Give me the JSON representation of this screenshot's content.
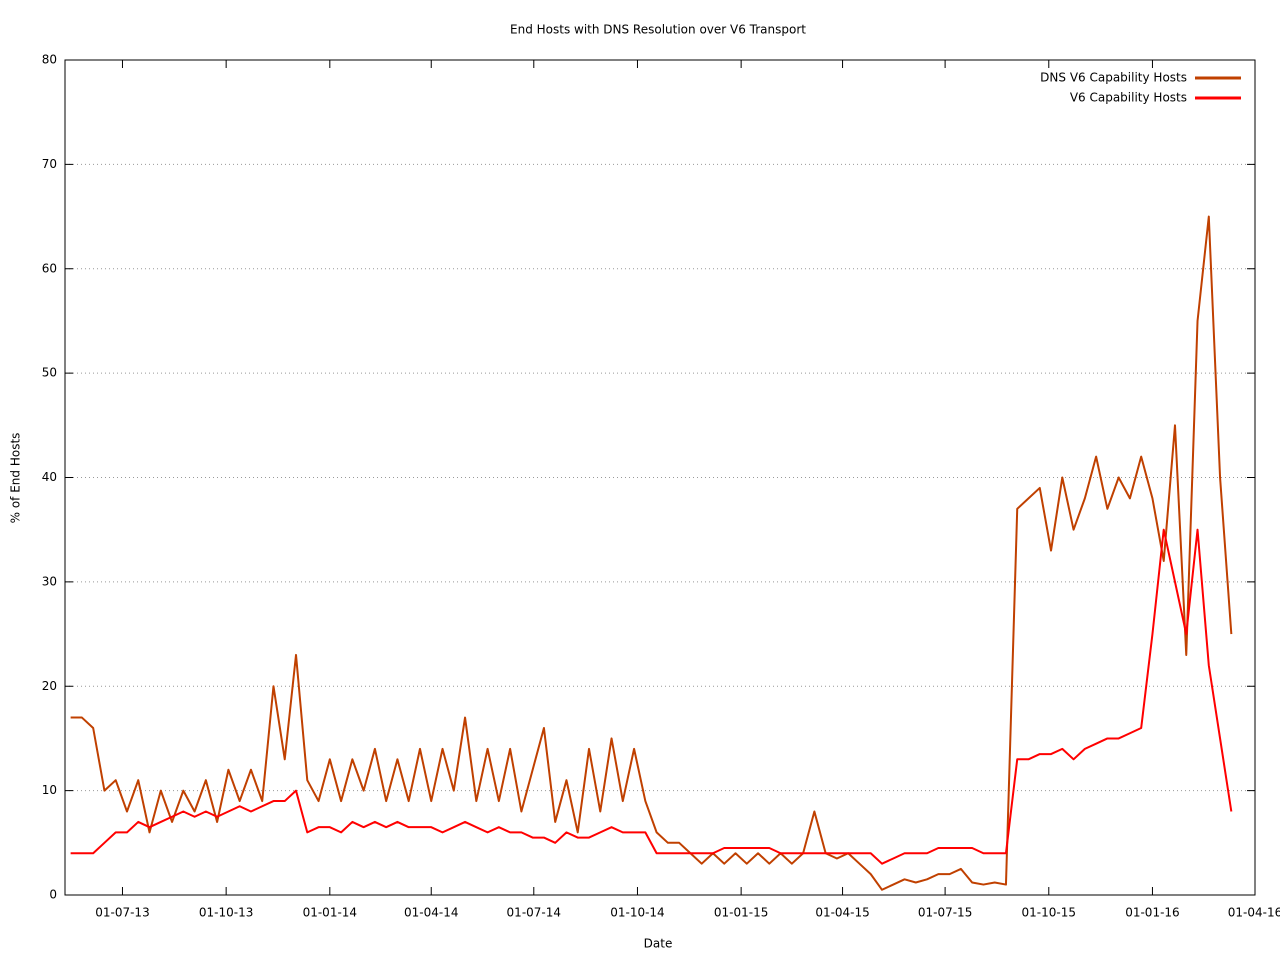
{
  "chart_data": {
    "type": "line",
    "title": "End Hosts with DNS Resolution over V6 Transport",
    "x_label": "Date",
    "y_label": "% of End Hosts",
    "x": [
      "2013-05-16",
      "2013-05-26",
      "2013-06-05",
      "2013-06-15",
      "2013-06-25",
      "2013-07-05",
      "2013-07-15",
      "2013-07-25",
      "2013-08-04",
      "2013-08-14",
      "2013-08-24",
      "2013-09-03",
      "2013-09-13",
      "2013-09-23",
      "2013-10-03",
      "2013-10-13",
      "2013-10-23",
      "2013-11-02",
      "2013-11-12",
      "2013-11-22",
      "2013-12-02",
      "2013-12-12",
      "2013-12-22",
      "2014-01-01",
      "2014-01-11",
      "2014-01-21",
      "2014-01-31",
      "2014-02-10",
      "2014-02-20",
      "2014-03-02",
      "2014-03-12",
      "2014-03-22",
      "2014-04-01",
      "2014-04-11",
      "2014-04-21",
      "2014-05-01",
      "2014-05-11",
      "2014-05-21",
      "2014-05-31",
      "2014-06-10",
      "2014-06-20",
      "2014-06-30",
      "2014-07-10",
      "2014-07-20",
      "2014-07-30",
      "2014-08-09",
      "2014-08-19",
      "2014-08-29",
      "2014-09-08",
      "2014-09-18",
      "2014-09-28",
      "2014-10-08",
      "2014-10-18",
      "2014-10-28",
      "2014-11-07",
      "2014-11-17",
      "2014-11-27",
      "2014-12-07",
      "2014-12-17",
      "2014-12-27",
      "2015-01-06",
      "2015-01-16",
      "2015-01-26",
      "2015-02-05",
      "2015-02-15",
      "2015-02-25",
      "2015-03-07",
      "2015-03-17",
      "2015-03-27",
      "2015-04-06",
      "2015-04-16",
      "2015-04-26",
      "2015-05-06",
      "2015-05-16",
      "2015-05-26",
      "2015-06-05",
      "2015-06-15",
      "2015-06-25",
      "2015-07-05",
      "2015-07-15",
      "2015-07-25",
      "2015-08-04",
      "2015-08-14",
      "2015-08-24",
      "2015-09-03",
      "2015-09-13",
      "2015-09-23",
      "2015-10-03",
      "2015-10-13",
      "2015-10-23",
      "2015-11-02",
      "2015-11-12",
      "2015-11-22",
      "2015-12-02",
      "2015-12-12",
      "2015-12-22",
      "2016-01-01",
      "2016-01-11",
      "2016-01-21",
      "2016-01-31",
      "2016-02-10",
      "2016-02-20",
      "2016-03-01",
      "2016-03-11"
    ],
    "series": [
      {
        "name": "DNS V6 Capability Hosts",
        "color": "#c04000",
        "values": [
          17,
          17,
          16,
          10,
          11,
          8,
          11,
          6,
          10,
          7,
          10,
          8,
          11,
          7,
          12,
          9,
          12,
          9,
          20,
          13,
          23,
          11,
          9,
          13,
          9,
          13,
          10,
          14,
          9,
          13,
          9,
          14,
          9,
          14,
          10,
          17,
          9,
          14,
          9,
          14,
          8,
          12,
          16,
          7,
          11,
          6,
          14,
          8,
          15,
          9,
          14,
          9,
          6,
          5,
          5,
          4,
          3,
          4,
          3,
          4,
          3,
          4,
          3,
          4,
          3,
          4,
          8,
          4,
          3.5,
          4,
          3,
          2,
          0.5,
          1,
          1.5,
          1.2,
          1.5,
          2,
          2,
          2.5,
          1.2,
          1,
          1.2,
          1,
          37,
          38,
          39,
          33,
          40,
          35,
          38,
          42,
          37,
          40,
          38,
          42,
          38,
          32,
          45,
          23,
          55,
          65,
          40,
          25
        ]
      },
      {
        "name": "V6 Capability Hosts",
        "color": "#ff0000",
        "values": [
          4,
          4,
          4,
          5,
          6,
          6,
          7,
          6.5,
          7,
          7.5,
          8,
          7.5,
          8,
          7.5,
          8,
          8.5,
          8,
          8.5,
          9,
          9,
          10,
          6,
          6.5,
          6.5,
          6,
          7,
          6.5,
          7,
          6.5,
          7,
          6.5,
          6.5,
          6.5,
          6,
          6.5,
          7,
          6.5,
          6,
          6.5,
          6,
          6,
          5.5,
          5.5,
          5,
          6,
          5.5,
          5.5,
          6,
          6.5,
          6,
          6,
          6,
          4,
          4,
          4,
          4,
          4,
          4,
          4.5,
          4.5,
          4.5,
          4.5,
          4.5,
          4,
          4,
          4,
          4,
          4,
          4,
          4,
          4,
          4,
          3,
          3.5,
          4,
          4,
          4,
          4.5,
          4.5,
          4.5,
          4.5,
          4,
          4,
          4,
          13,
          13,
          13.5,
          13.5,
          14,
          13,
          14,
          14.5,
          15,
          15,
          15.5,
          16,
          25,
          35,
          30,
          25,
          35,
          22,
          15,
          8
        ]
      }
    ],
    "xlim": [
      "2013-05-11",
      "2016-04-01"
    ],
    "xticks": [
      {
        "value": "2013-07-01",
        "label": "01-07-13"
      },
      {
        "value": "2013-10-01",
        "label": "01-10-13"
      },
      {
        "value": "2014-01-01",
        "label": "01-01-14"
      },
      {
        "value": "2014-04-01",
        "label": "01-04-14"
      },
      {
        "value": "2014-07-01",
        "label": "01-07-14"
      },
      {
        "value": "2014-10-01",
        "label": "01-10-14"
      },
      {
        "value": "2015-01-01",
        "label": "01-01-15"
      },
      {
        "value": "2015-04-01",
        "label": "01-04-15"
      },
      {
        "value": "2015-07-01",
        "label": "01-07-15"
      },
      {
        "value": "2015-10-01",
        "label": "01-10-15"
      },
      {
        "value": "2016-01-01",
        "label": "01-01-16"
      },
      {
        "value": "2016-04-01",
        "label": "01-04-16"
      }
    ],
    "ylim": [
      0,
      80
    ],
    "yticks": [
      0,
      10,
      20,
      30,
      40,
      50,
      60,
      70,
      80
    ],
    "grid": true,
    "legend": "top-right"
  }
}
